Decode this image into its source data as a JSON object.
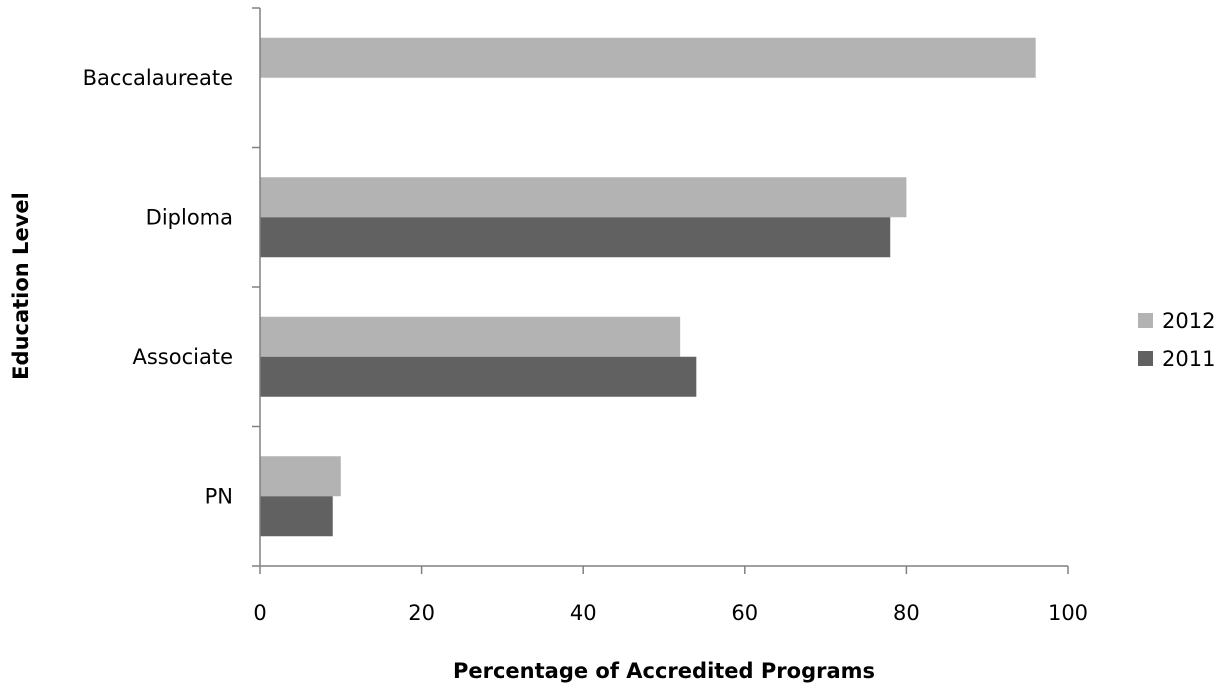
{
  "chart_data": {
    "type": "bar",
    "orientation": "horizontal",
    "categories": [
      "PN",
      "Associate",
      "Diploma",
      "Baccalaureate"
    ],
    "series": [
      {
        "name": "2012",
        "values": [
          10,
          52,
          80,
          96
        ],
        "color": "#b3b3b3"
      },
      {
        "name": "2011",
        "values": [
          9,
          54,
          78,
          null
        ],
        "color": "#616161"
      }
    ],
    "xlabel": "Percentage of Accredited Programs",
    "ylabel": "Education Level",
    "xlim": [
      0,
      100
    ],
    "xticks": [
      "0",
      "20",
      "40",
      "60",
      "80",
      "100"
    ],
    "grid": false,
    "legend_position": "right"
  }
}
